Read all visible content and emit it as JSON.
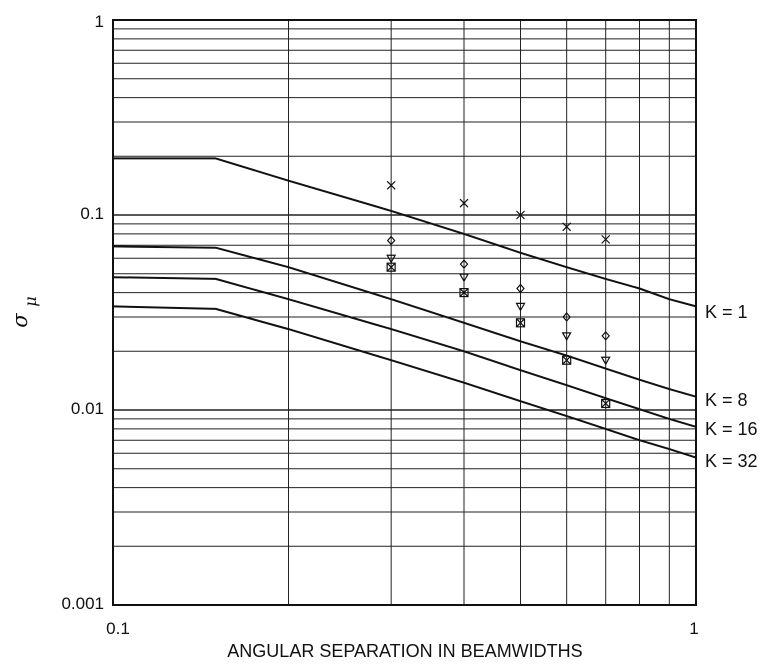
{
  "chart_data": {
    "type": "line",
    "xscale": "log",
    "yscale": "log",
    "xlim": [
      0.1,
      1
    ],
    "ylim": [
      0.001,
      1
    ],
    "grid": true,
    "xlabel": "ANGULAR SEPARATION IN BEAMWIDTHS",
    "ylabel": {
      "main": "σ",
      "sub": "μ"
    },
    "x_tick_labels": [
      {
        "value": 0.1,
        "label": "0.1"
      },
      {
        "value": 1,
        "label": "1"
      }
    ],
    "y_tick_labels": [
      {
        "value": 0.001,
        "label": "0.001"
      },
      {
        "value": 0.01,
        "label": "0.01"
      },
      {
        "value": 0.1,
        "label": "0.1"
      },
      {
        "value": 1,
        "label": "1"
      }
    ],
    "series": [
      {
        "name": "K = 1",
        "x": [
          0.1,
          0.15,
          0.2,
          0.3,
          0.4,
          0.5,
          0.6,
          0.7,
          0.8,
          0.9,
          1.0
        ],
        "values": [
          0.195,
          0.195,
          0.15,
          0.105,
          0.08,
          0.064,
          0.054,
          0.047,
          0.042,
          0.037,
          0.034
        ]
      },
      {
        "name": "K = 8",
        "x": [
          0.1,
          0.15,
          0.2,
          0.3,
          0.4,
          0.5,
          0.6,
          0.7,
          0.8,
          0.9,
          1.0
        ],
        "values": [
          0.069,
          0.068,
          0.054,
          0.037,
          0.028,
          0.0225,
          0.019,
          0.0163,
          0.0143,
          0.0128,
          0.0117
        ]
      },
      {
        "name": "K = 16",
        "x": [
          0.1,
          0.15,
          0.2,
          0.3,
          0.4,
          0.5,
          0.6,
          0.7,
          0.8,
          0.9,
          1.0
        ],
        "values": [
          0.048,
          0.047,
          0.037,
          0.026,
          0.02,
          0.016,
          0.0134,
          0.0115,
          0.0101,
          0.009,
          0.0082
        ]
      },
      {
        "name": "K = 32",
        "x": [
          0.1,
          0.15,
          0.2,
          0.3,
          0.4,
          0.5,
          0.6,
          0.7,
          0.8,
          0.9,
          1.0
        ],
        "values": [
          0.034,
          0.033,
          0.026,
          0.018,
          0.0138,
          0.0111,
          0.0093,
          0.008,
          0.007,
          0.0063,
          0.0057
        ]
      }
    ],
    "markers": [
      {
        "symbol": "x",
        "x": [
          0.3,
          0.4,
          0.5,
          0.6,
          0.7
        ],
        "values": [
          0.142,
          0.115,
          0.1,
          0.087,
          0.075
        ]
      },
      {
        "symbol": "diamond",
        "x": [
          0.3,
          0.4,
          0.5,
          0.6,
          0.7
        ],
        "values": [
          0.074,
          0.056,
          0.042,
          0.03,
          0.024
        ]
      },
      {
        "symbol": "triangle-down",
        "x": [
          0.3,
          0.4,
          0.5,
          0.6,
          0.7
        ],
        "values": [
          0.06,
          0.048,
          0.034,
          0.024,
          0.018
        ]
      },
      {
        "symbol": "boxed-x",
        "x": [
          0.3,
          0.4,
          0.5,
          0.6,
          0.7
        ],
        "values": [
          0.054,
          0.04,
          0.028,
          0.018,
          0.0108
        ]
      }
    ]
  }
}
